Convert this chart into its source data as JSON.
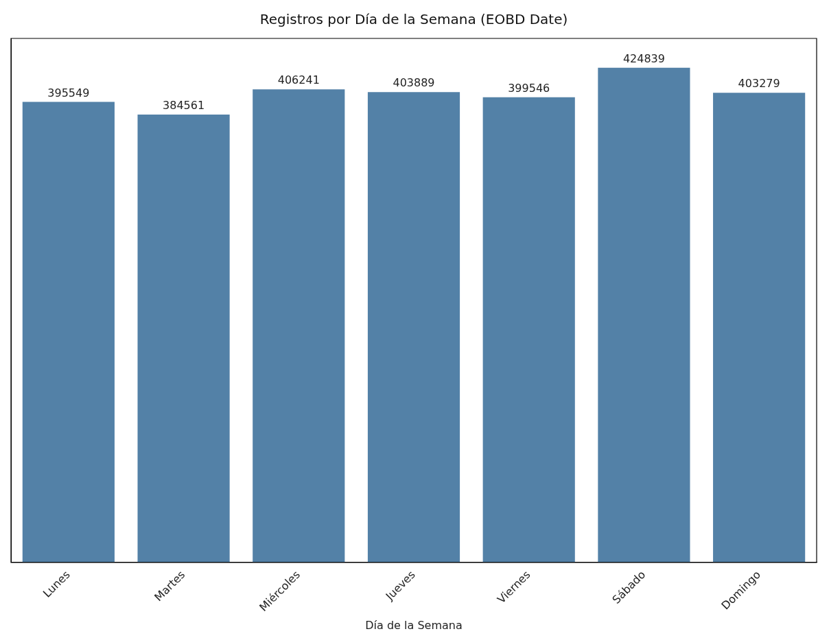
{
  "chart_data": {
    "type": "bar",
    "title": "Registros por Día de la Semana (EOBD Date)",
    "xlabel": "Día de la Semana",
    "categories": [
      "Lunes",
      "Martes",
      "Miércoles",
      "Jueves",
      "Viernes",
      "Sábado",
      "Domingo"
    ],
    "values": [
      395549,
      384561,
      406241,
      403889,
      399546,
      424839,
      403279
    ],
    "color": "#5381a7",
    "data_labels": true,
    "grid": false,
    "legend": false,
    "tick_labels": "x"
  }
}
